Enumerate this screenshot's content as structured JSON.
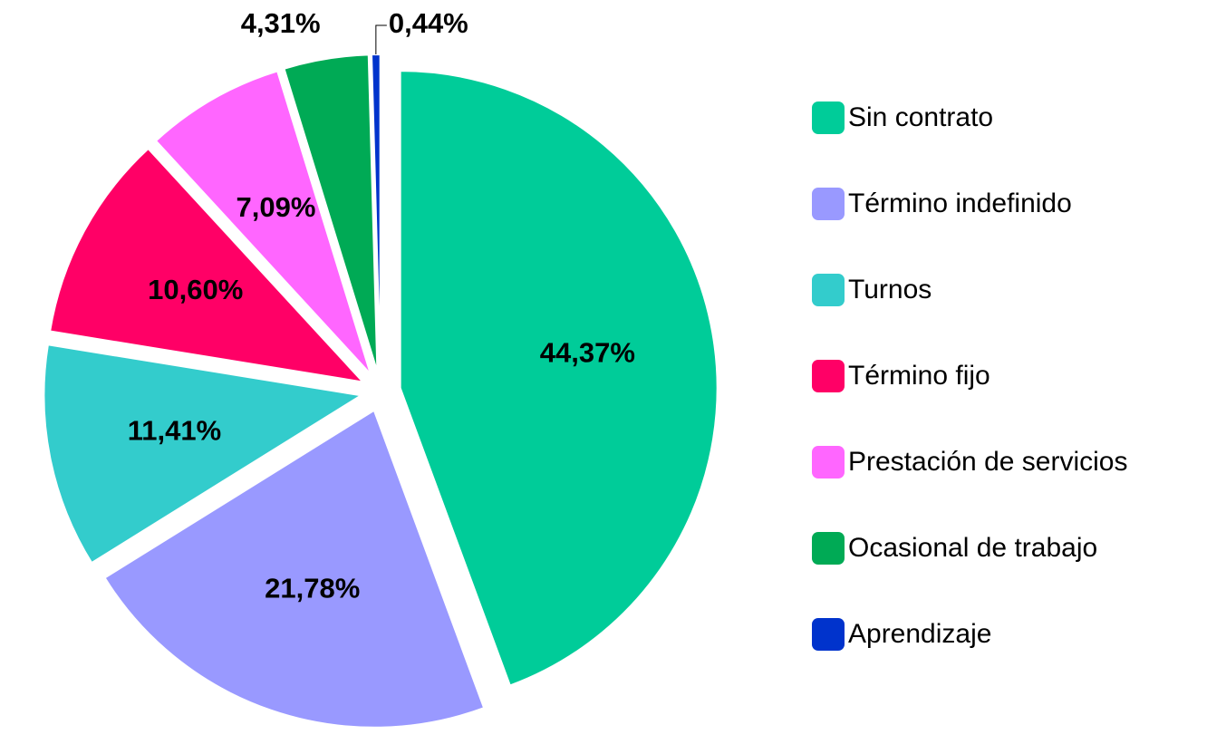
{
  "chart_data": {
    "type": "pie",
    "categories": [
      "Sin contrato",
      "Término indefinido",
      "Turnos",
      "Término fijo",
      "Prestación de servicios",
      "Ocasional de trabajo",
      "Aprendizaje"
    ],
    "values": [
      44.37,
      21.78,
      11.41,
      10.6,
      7.09,
      4.31,
      0.44
    ],
    "value_labels": [
      "44,37%",
      "21,78%",
      "11,41%",
      "10,60%",
      "7,09%",
      "4,31%",
      "0,44%"
    ],
    "colors": [
      "#00cc99",
      "#9999ff",
      "#33cccc",
      "#ff0066",
      "#ff66ff",
      "#00aa55",
      "#0033cc"
    ],
    "legend": "right"
  }
}
